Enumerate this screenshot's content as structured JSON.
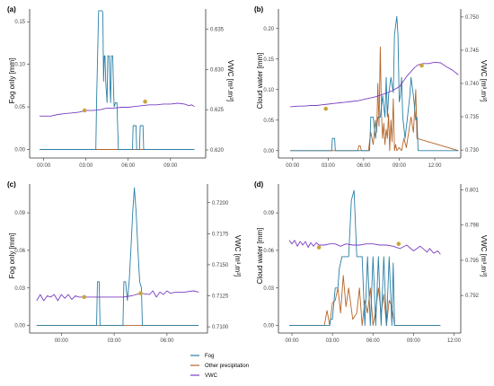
{
  "chart_data": [
    {
      "panel": "(a)",
      "type": "line",
      "ylabel": "Fog only [mm]",
      "y2label": "VWC [m³.m³]",
      "xticks": [
        "00:00",
        "03:00",
        "06:00",
        "09:00"
      ],
      "xlim": [
        -1.0,
        11.5
      ],
      "ylim": [
        -0.01,
        0.165
      ],
      "yticks": [
        0,
        0.05,
        0.1,
        0.15
      ],
      "ytick_labels": [
        "0.00",
        "0.05",
        "0.10",
        "0.15"
      ],
      "y2lim": [
        0.619,
        0.6375
      ],
      "y2ticks": [
        0.62,
        0.625,
        0.63,
        0.635
      ],
      "y2tick_labels": [
        "0.620",
        "0.625",
        "0.630",
        "0.635"
      ],
      "series": [
        {
          "name": "Fog",
          "axis": "left",
          "color": "#2a7fa6",
          "x": [
            -0.3,
            3.7,
            3.75,
            3.9,
            4.0,
            4.05,
            4.15,
            4.2,
            4.25,
            4.3,
            4.35,
            4.4,
            4.5,
            4.55,
            4.6,
            4.65,
            4.7,
            4.75,
            4.8,
            4.85,
            4.9,
            4.95,
            5.0,
            5.1,
            5.2,
            5.3,
            6.3,
            6.35,
            6.45,
            6.55,
            6.6,
            6.7,
            6.8,
            6.85,
            6.95,
            7.0,
            7.05,
            7.1,
            10.7
          ],
          "y": [
            0,
            0,
            0.055,
            0.163,
            0.163,
            0.163,
            0.163,
            0.16,
            0.08,
            0.11,
            0.11,
            0.08,
            0.055,
            0.11,
            0.11,
            0.11,
            0.075,
            0.055,
            0.11,
            0.11,
            0.11,
            0.075,
            0.05,
            0.055,
            0.055,
            0,
            0,
            0.028,
            0.028,
            0.028,
            0,
            0,
            0,
            0.028,
            0.028,
            0.028,
            0.028,
            0,
            0
          ]
        },
        {
          "name": "Other precipitation",
          "axis": "left",
          "color": "#b5652a",
          "x": [
            -0.3,
            10.7
          ],
          "y": [
            0,
            0
          ]
        },
        {
          "name": "VWC",
          "axis": "right",
          "color": "#7b3fc4",
          "x": [
            -0.3,
            0.5,
            1.0,
            1.5,
            2.0,
            2.5,
            3.0,
            3.5,
            4.0,
            4.5,
            5.0,
            5.5,
            6.0,
            6.5,
            7.0,
            7.5,
            8.0,
            8.5,
            9.0,
            9.5,
            10.0,
            10.3,
            10.5,
            10.7
          ],
          "y": [
            0.6242,
            0.6242,
            0.6244,
            0.6245,
            0.6246,
            0.6247,
            0.6249,
            0.6249,
            0.625,
            0.6252,
            0.6252,
            0.6253,
            0.6253,
            0.6254,
            0.6255,
            0.6256,
            0.6256,
            0.6257,
            0.6257,
            0.6258,
            0.6257,
            0.6255,
            0.6256,
            0.6254
          ]
        }
      ],
      "markers": [
        {
          "x": 2.9,
          "y": 0.6249,
          "color": "#c9a53c"
        },
        {
          "x": 7.2,
          "y": 0.626,
          "color": "#c9a53c"
        }
      ]
    },
    {
      "panel": "(b)",
      "type": "line",
      "ylabel": "Cloud water [mm]",
      "y2label": "VWC [m³.m³]",
      "xticks": [
        "00:00",
        "03:00",
        "06:00",
        "09:00",
        "12:00"
      ],
      "xlim": [
        -1.2,
        14.2
      ],
      "ylim": [
        -0.012,
        0.232
      ],
      "yticks": [
        0,
        0.05,
        0.1,
        0.15,
        0.2
      ],
      "ytick_labels": [
        "0.00",
        "0.05",
        "0.10",
        "0.15",
        "0.20"
      ],
      "y2lim": [
        0.7288,
        0.7512
      ],
      "y2ticks": [
        0.73,
        0.735,
        0.74,
        0.745,
        0.75
      ],
      "y2tick_labels": [
        "0.730",
        "0.735",
        "0.740",
        "0.745",
        "0.750"
      ],
      "series": [
        {
          "name": "Fog",
          "axis": "left",
          "color": "#2a7fa6",
          "x": [
            -0.2,
            3.3,
            3.35,
            3.45,
            3.55,
            3.6,
            6.5,
            6.6,
            6.8,
            7.0,
            7.2,
            7.4,
            7.6,
            7.8,
            7.9,
            8.0,
            8.1,
            8.3,
            8.5,
            8.6,
            8.8,
            8.9,
            9.0,
            9.1,
            9.2,
            9.3,
            9.5,
            9.7,
            9.9,
            10.0,
            10.2,
            10.4,
            10.5,
            10.6,
            14.0
          ],
          "y": [
            0,
            0,
            0.02,
            0.02,
            0.02,
            0,
            0,
            0.055,
            0.055,
            0.02,
            0.055,
            0.055,
            0.09,
            0.055,
            0.12,
            0.055,
            0.09,
            0.12,
            0.095,
            0.19,
            0.22,
            0.19,
            0.08,
            0.09,
            0.12,
            0.055,
            0.02,
            0.055,
            0.09,
            0.12,
            0.09,
            0.05,
            0.055,
            0,
            0
          ]
        },
        {
          "name": "Other precipitation",
          "axis": "left",
          "color": "#b5652a",
          "x": [
            -0.2,
            5.5,
            5.6,
            5.7,
            5.8,
            6.0,
            6.4,
            6.6,
            6.8,
            7.0,
            7.1,
            7.2,
            7.3,
            7.4,
            7.5,
            7.6,
            7.7,
            7.8,
            7.9,
            8.0,
            8.1,
            8.2,
            8.3,
            8.4,
            8.5,
            8.6,
            8.7,
            8.8,
            9.0,
            9.2,
            9.4,
            9.6,
            9.8,
            10.0,
            10.2,
            10.4,
            10.5,
            14.0
          ],
          "y": [
            0,
            0,
            0.008,
            0.008,
            0,
            0,
            0,
            0.03,
            0.01,
            0.05,
            0.03,
            0.11,
            0.04,
            0.17,
            0.06,
            0.02,
            0.045,
            0.01,
            0.035,
            0.02,
            0.06,
            0,
            0.05,
            0.015,
            0.085,
            0,
            0.01,
            0,
            0.005,
            0,
            0.02,
            0.005,
            0.03,
            0.055,
            0.03,
            0.1,
            0.02,
            0
          ]
        },
        {
          "name": "VWC",
          "axis": "right",
          "color": "#7b3fc4",
          "x": [
            -0.2,
            0.5,
            1.0,
            1.5,
            2.0,
            2.5,
            3.0,
            3.5,
            4.0,
            4.5,
            5.0,
            5.5,
            6.0,
            6.5,
            7.0,
            7.5,
            8.0,
            8.5,
            9.0,
            9.3,
            9.6,
            10.0,
            10.3,
            10.6,
            11.0,
            11.5,
            12.0,
            12.5,
            13.0,
            13.5,
            14.0
          ],
          "y": [
            0.7365,
            0.7366,
            0.7366,
            0.7367,
            0.7367,
            0.7368,
            0.7369,
            0.737,
            0.7371,
            0.7372,
            0.7373,
            0.7374,
            0.7376,
            0.7378,
            0.738,
            0.7383,
            0.7386,
            0.739,
            0.7395,
            0.7402,
            0.741,
            0.7418,
            0.7424,
            0.7428,
            0.743,
            0.743,
            0.7432,
            0.7431,
            0.7425,
            0.742,
            0.7413
          ]
        }
      ],
      "markers": [
        {
          "x": 2.8,
          "y": 0.7362,
          "color": "#c9a53c"
        },
        {
          "x": 10.9,
          "y": 0.7427,
          "color": "#c9a53c"
        }
      ]
    },
    {
      "panel": "(c)",
      "type": "line",
      "ylabel": "Fog only [mm]",
      "y2label": "VWC [m³.m³]",
      "xticks": [
        "00:00",
        "03:00",
        "06:00"
      ],
      "xlim": [
        -1.8,
        8.3
      ],
      "ylim": [
        -0.006,
        0.113
      ],
      "yticks": [
        0,
        0.03,
        0.06,
        0.09
      ],
      "ytick_labels": [
        "0.00",
        "0.03",
        "0.06",
        "0.09"
      ],
      "y2lim": [
        0.7095,
        0.7215
      ],
      "y2ticks": [
        0.71,
        0.7125,
        0.715,
        0.7175,
        0.72
      ],
      "y2tick_labels": [
        "0.7100",
        "0.7125",
        "0.7150",
        "0.7175",
        "0.7200"
      ],
      "series": [
        {
          "name": "Fog",
          "axis": "left",
          "color": "#2a7fa6",
          "x": [
            -1.4,
            2.0,
            2.05,
            2.15,
            2.2,
            3.5,
            3.55,
            3.65,
            3.75,
            3.85,
            3.95,
            4.05,
            4.15,
            4.25,
            4.35,
            4.45,
            4.55,
            4.6,
            7.8
          ],
          "y": [
            0,
            0,
            0.035,
            0.035,
            0,
            0,
            0.035,
            0.035,
            0.02,
            0.035,
            0.06,
            0.09,
            0.11,
            0.09,
            0.06,
            0.035,
            0.03,
            0,
            0
          ]
        },
        {
          "name": "Other precipitation",
          "axis": "left",
          "color": "#b5652a",
          "x": [
            -1.4,
            7.8
          ],
          "y": [
            0,
            0
          ]
        },
        {
          "name": "VWC",
          "axis": "right",
          "color": "#7b3fc4",
          "x": [
            -1.4,
            -1.2,
            -1.0,
            -0.8,
            -0.6,
            -0.4,
            -0.2,
            0.0,
            0.2,
            0.4,
            0.6,
            0.8,
            1.0,
            1.5,
            2.0,
            2.5,
            3.0,
            3.5,
            4.0,
            4.5,
            5.0,
            5.2,
            5.4,
            5.6,
            5.8,
            6.0,
            6.2,
            6.5,
            7.0,
            7.5,
            7.8
          ],
          "y": [
            0.7121,
            0.7126,
            0.7121,
            0.7125,
            0.7124,
            0.7126,
            0.7121,
            0.7126,
            0.7123,
            0.7126,
            0.7122,
            0.7125,
            0.7124,
            0.7124,
            0.7124,
            0.7124,
            0.7124,
            0.7124,
            0.7125,
            0.7127,
            0.7126,
            0.7129,
            0.7124,
            0.7128,
            0.7126,
            0.7129,
            0.7127,
            0.7128,
            0.7128,
            0.7129,
            0.7128
          ]
        }
      ],
      "markers": [
        {
          "x": 1.3,
          "y": 0.7124,
          "color": "#c9a53c"
        },
        {
          "x": 4.5,
          "y": 0.7127,
          "color": "#c9a53c"
        }
      ]
    },
    {
      "panel": "(d)",
      "type": "line",
      "ylabel": "Cloud water [mm]",
      "y2label": "VWC [m³.m³]",
      "xticks": [
        "00:00",
        "03:00",
        "06:00",
        "09:00",
        "12:00"
      ],
      "xlim": [
        -1.0,
        12.5
      ],
      "ylim": [
        -0.006,
        0.113
      ],
      "yticks": [
        0,
        0.03,
        0.06,
        0.09
      ],
      "ytick_labels": [
        "0.00",
        "0.03",
        "0.06",
        "0.09"
      ],
      "y2lim": [
        0.7888,
        0.8015
      ],
      "y2ticks": [
        0.792,
        0.795,
        0.798,
        0.801
      ],
      "y2tick_labels": [
        "0.792",
        "0.795",
        "0.798",
        "0.801"
      ],
      "series": [
        {
          "name": "Fog",
          "axis": "left",
          "color": "#2a7fa6",
          "x": [
            -0.2,
            2.8,
            2.85,
            3.0,
            3.2,
            3.4,
            3.5,
            3.7,
            3.9,
            4.0,
            4.2,
            4.4,
            4.6,
            4.8,
            5.0,
            5.2,
            5.4,
            5.6,
            5.8,
            6.0,
            6.2,
            6.4,
            6.6,
            6.8,
            7.0,
            7.2,
            7.4,
            7.5,
            7.6,
            11.0
          ],
          "y": [
            0,
            0,
            0.005,
            0.005,
            0.03,
            0.03,
            0.045,
            0.055,
            0.055,
            0.055,
            0.055,
            0.1,
            0.108,
            0.055,
            0.055,
            0.055,
            0,
            0.055,
            0,
            0.055,
            0,
            0.055,
            0,
            0.055,
            0,
            0.055,
            0,
            0.05,
            0,
            0
          ]
        },
        {
          "name": "Other precipitation",
          "axis": "left",
          "color": "#b5652a",
          "x": [
            -0.2,
            2.4,
            2.6,
            2.8,
            3.0,
            3.2,
            3.4,
            3.6,
            3.8,
            4.0,
            4.2,
            4.5,
            4.8,
            5.0,
            5.2,
            5.4,
            5.6,
            5.8,
            6.0,
            6.2,
            6.4,
            6.6,
            6.8,
            7.0,
            7.2,
            7.4,
            7.6,
            11.0
          ],
          "y": [
            0,
            0,
            0.012,
            0,
            0.018,
            0.02,
            0.03,
            0.01,
            0.04,
            0.015,
            0.03,
            0.005,
            0.01,
            0.03,
            0,
            0.02,
            0.01,
            0.03,
            0,
            0.012,
            0.03,
            0.01,
            0.025,
            0,
            0.02,
            0.015,
            0,
            0
          ]
        },
        {
          "name": "VWC",
          "axis": "right",
          "color": "#7b3fc4",
          "x": [
            -0.2,
            0.0,
            0.2,
            0.4,
            0.6,
            0.8,
            1.0,
            1.2,
            1.4,
            1.6,
            1.8,
            2.0,
            2.4,
            2.8,
            3.2,
            3.6,
            4.0,
            4.5,
            5.0,
            5.5,
            6.0,
            6.5,
            7.0,
            7.5,
            8.0,
            8.5,
            9.0,
            9.5,
            10.0,
            10.2,
            10.5,
            10.8,
            11.0
          ],
          "y": [
            0.7967,
            0.7964,
            0.7967,
            0.7962,
            0.7966,
            0.7963,
            0.7966,
            0.7961,
            0.7965,
            0.7962,
            0.7965,
            0.7963,
            0.7963,
            0.7964,
            0.7964,
            0.7962,
            0.7964,
            0.7963,
            0.7963,
            0.7964,
            0.7964,
            0.7963,
            0.7963,
            0.7962,
            0.796,
            0.7963,
            0.7958,
            0.7962,
            0.7957,
            0.796,
            0.7956,
            0.7958,
            0.7955
          ]
        }
      ],
      "markers": [
        {
          "x": 2.0,
          "y": 0.7961,
          "color": "#c9a53c"
        },
        {
          "x": 7.9,
          "y": 0.7964,
          "color": "#c9a53c"
        }
      ]
    }
  ],
  "legend": [
    {
      "name": "Fog",
      "color": "#2a7fa6"
    },
    {
      "name": "Other precipitation",
      "color": "#b5652a"
    },
    {
      "name": "VWC",
      "color": "#7b3fc4"
    }
  ]
}
